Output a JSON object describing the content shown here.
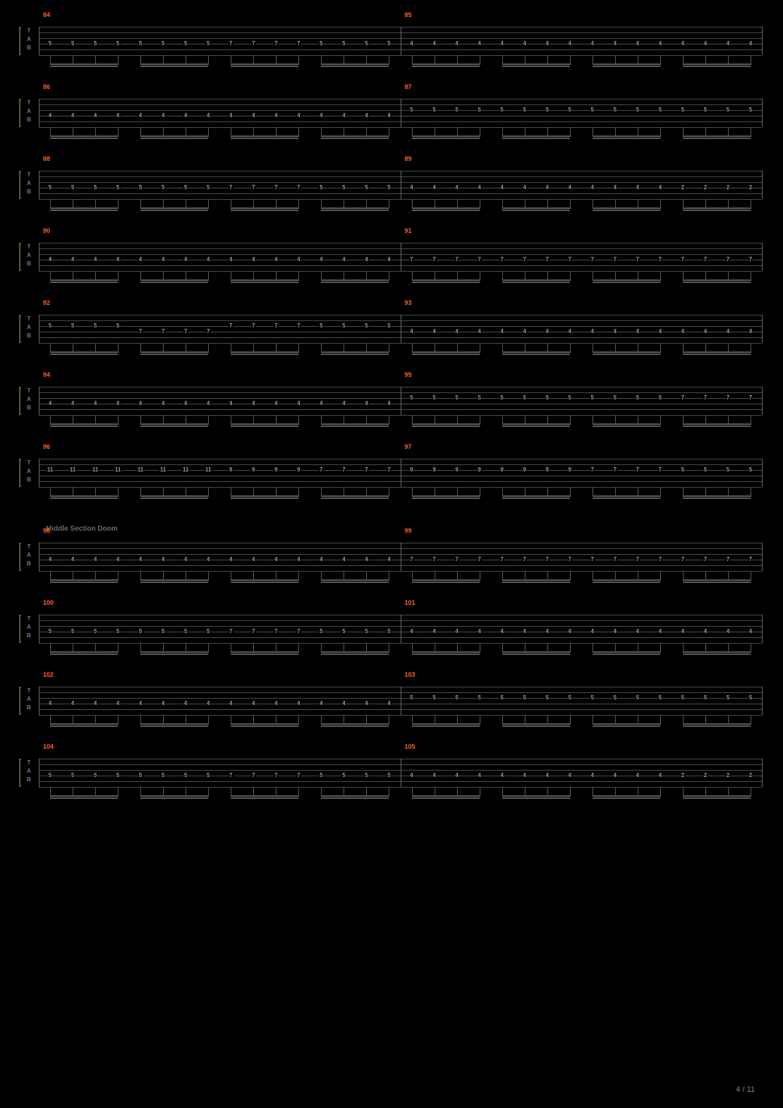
{
  "page": {
    "current": 4,
    "total": 11
  },
  "sectionLabel": "Middle Section Doom",
  "sectionBeforeSystem": 7,
  "colors": {
    "background": "#000000",
    "staffLine": "#4a4a4a",
    "barLine": "#6a6a6a",
    "measureNum": "#ff6420",
    "fretText": "#9a9a9a",
    "beam": "#5a5a5a",
    "bracket": "#5a5a3a",
    "sectionText": "#6a6a6a"
  },
  "staff": {
    "strings": 6,
    "clefLetters": [
      "T",
      "A",
      "B"
    ],
    "stringSpacing": 8
  },
  "systems": [
    {
      "measures": [
        {
          "num": 84,
          "string": 4,
          "frets": [
            5,
            5,
            5,
            5,
            5,
            5,
            5,
            5,
            7,
            7,
            7,
            7,
            5,
            5,
            5,
            5
          ]
        },
        {
          "num": 85,
          "string": 4,
          "frets": [
            4,
            4,
            4,
            4,
            4,
            4,
            4,
            4,
            4,
            4,
            4,
            4,
            4,
            4,
            4,
            4
          ]
        }
      ]
    },
    {
      "measures": [
        {
          "num": 86,
          "string": 4,
          "frets": [
            4,
            4,
            4,
            4,
            4,
            4,
            4,
            4,
            4,
            4,
            4,
            4,
            4,
            4,
            4,
            4
          ]
        },
        {
          "num": 87,
          "string": 3,
          "frets": [
            5,
            5,
            5,
            5,
            5,
            5,
            5,
            5,
            5,
            5,
            5,
            5,
            5,
            5,
            5,
            5
          ]
        }
      ]
    },
    {
      "measures": [
        {
          "num": 88,
          "string": 4,
          "frets": [
            5,
            5,
            5,
            5,
            5,
            5,
            5,
            5,
            7,
            7,
            7,
            7,
            5,
            5,
            5,
            5
          ]
        },
        {
          "num": 89,
          "string": 4,
          "frets": [
            4,
            4,
            4,
            4,
            4,
            4,
            4,
            4,
            4,
            4,
            4,
            4,
            2,
            2,
            2,
            2
          ]
        }
      ]
    },
    {
      "measures": [
        {
          "num": 90,
          "string": 4,
          "frets": [
            4,
            4,
            4,
            4,
            4,
            4,
            4,
            4,
            4,
            4,
            4,
            4,
            4,
            4,
            4,
            4
          ]
        },
        {
          "num": 91,
          "string": 4,
          "frets": [
            7,
            7,
            7,
            7,
            7,
            7,
            7,
            7,
            7,
            7,
            7,
            7,
            7,
            7,
            7,
            7
          ]
        }
      ]
    },
    {
      "measures": [
        {
          "num": 92,
          "strings": [
            3,
            3,
            3,
            3,
            4,
            4,
            4,
            4,
            3,
            3,
            3,
            3,
            3,
            3,
            3,
            3
          ],
          "frets": [
            5,
            5,
            5,
            5,
            7,
            7,
            7,
            7,
            7,
            7,
            7,
            7,
            5,
            5,
            5,
            5
          ]
        },
        {
          "num": 93,
          "string": 4,
          "frets": [
            4,
            4,
            4,
            4,
            4,
            4,
            4,
            4,
            4,
            4,
            4,
            4,
            4,
            4,
            4,
            4
          ]
        }
      ]
    },
    {
      "measures": [
        {
          "num": 94,
          "string": 4,
          "frets": [
            4,
            4,
            4,
            4,
            4,
            4,
            4,
            4,
            4,
            4,
            4,
            4,
            4,
            4,
            4,
            4
          ]
        },
        {
          "num": 95,
          "string": 3,
          "frets": [
            5,
            5,
            5,
            5,
            5,
            5,
            5,
            5,
            5,
            5,
            5,
            5,
            7,
            7,
            7,
            7
          ]
        }
      ]
    },
    {
      "measures": [
        {
          "num": 96,
          "string": 3,
          "frets": [
            11,
            11,
            11,
            11,
            11,
            11,
            11,
            11,
            9,
            9,
            9,
            9,
            7,
            7,
            7,
            7
          ]
        },
        {
          "num": 97,
          "string": 3,
          "frets": [
            9,
            9,
            9,
            9,
            9,
            9,
            9,
            9,
            7,
            7,
            7,
            7,
            5,
            5,
            5,
            5
          ]
        }
      ]
    },
    {
      "measures": [
        {
          "num": 98,
          "string": 4,
          "frets": [
            4,
            4,
            4,
            4,
            4,
            4,
            4,
            4,
            4,
            4,
            4,
            4,
            4,
            4,
            4,
            4
          ]
        },
        {
          "num": 99,
          "string": 4,
          "frets": [
            7,
            7,
            7,
            7,
            7,
            7,
            7,
            7,
            7,
            7,
            7,
            7,
            7,
            7,
            7,
            7
          ]
        }
      ]
    },
    {
      "measures": [
        {
          "num": 100,
          "string": 4,
          "frets": [
            5,
            5,
            5,
            5,
            5,
            5,
            5,
            5,
            7,
            7,
            7,
            7,
            5,
            5,
            5,
            5
          ]
        },
        {
          "num": 101,
          "string": 4,
          "frets": [
            4,
            4,
            4,
            4,
            4,
            4,
            4,
            4,
            4,
            4,
            4,
            4,
            4,
            4,
            4,
            4
          ]
        }
      ]
    },
    {
      "measures": [
        {
          "num": 102,
          "string": 4,
          "frets": [
            4,
            4,
            4,
            4,
            4,
            4,
            4,
            4,
            4,
            4,
            4,
            4,
            4,
            4,
            4,
            4
          ]
        },
        {
          "num": 103,
          "string": 3,
          "frets": [
            5,
            5,
            5,
            5,
            5,
            5,
            5,
            5,
            5,
            5,
            5,
            5,
            5,
            5,
            5,
            5
          ]
        }
      ]
    },
    {
      "measures": [
        {
          "num": 104,
          "string": 4,
          "frets": [
            5,
            5,
            5,
            5,
            5,
            5,
            5,
            5,
            7,
            7,
            7,
            7,
            5,
            5,
            5,
            5
          ]
        },
        {
          "num": 105,
          "string": 4,
          "frets": [
            4,
            4,
            4,
            4,
            4,
            4,
            4,
            4,
            4,
            4,
            4,
            4,
            2,
            2,
            2,
            2
          ]
        }
      ]
    }
  ]
}
